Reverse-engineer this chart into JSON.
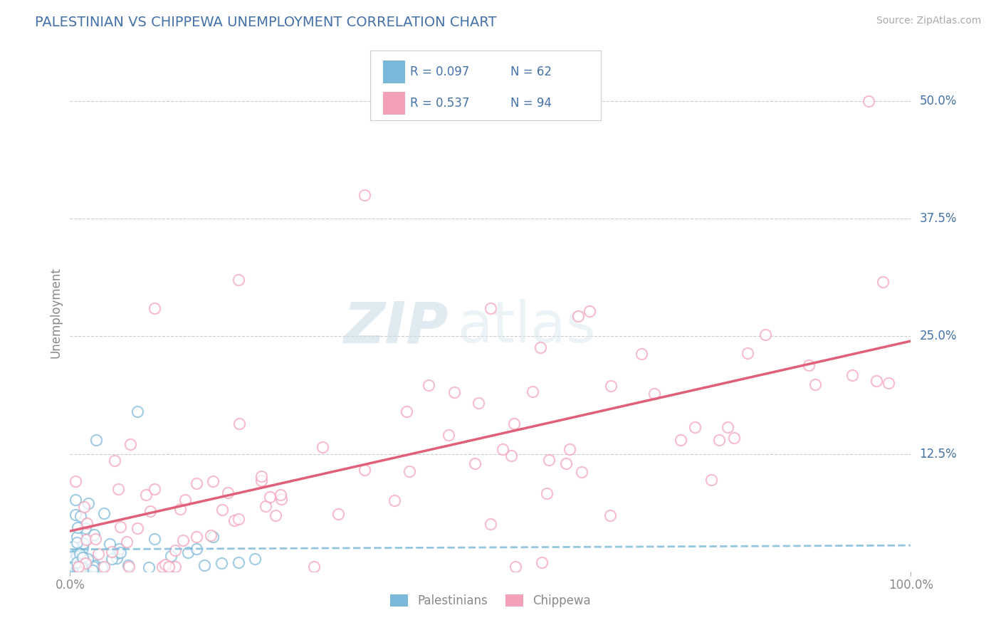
{
  "title": "PALESTINIAN VS CHIPPEWA UNEMPLOYMENT CORRELATION CHART",
  "source_text": "Source: ZipAtlas.com",
  "xlabel": "",
  "ylabel": "Unemployment",
  "xlim": [
    0,
    100
  ],
  "ylim": [
    0,
    55
  ],
  "xtick_labels": [
    "0.0%",
    "100.0%"
  ],
  "ytick_values": [
    12.5,
    25.0,
    37.5,
    50.0
  ],
  "ytick_labels": [
    "12.5%",
    "25.0%",
    "37.5%",
    "50.0%"
  ],
  "legend_R_blue": "R = 0.097",
  "legend_N_blue": "N = 62",
  "legend_R_pink": "R = 0.537",
  "legend_N_pink": "N = 94",
  "blue_color": "#7ab8d9",
  "pink_color": "#f4a0b8",
  "blue_line_color": "#7ab8d9",
  "pink_line_color": "#e0607a",
  "title_color": "#4472a8",
  "axis_label_color": "#4472a8",
  "tick_color": "#888888",
  "watermark_zip_color": "#c8d8e8",
  "watermark_atlas_color": "#c8d8e8",
  "grid_color": "#cccccc",
  "blue_N": 62,
  "pink_N": 94
}
